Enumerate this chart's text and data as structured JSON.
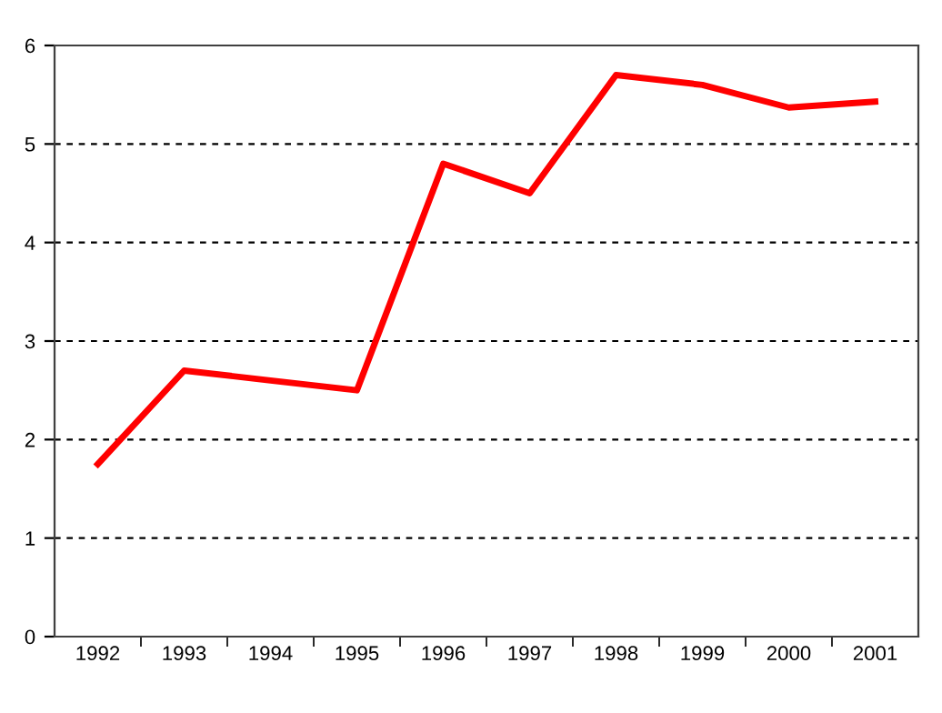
{
  "chart_data": {
    "type": "line",
    "categories": [
      "1992",
      "1993",
      "1994",
      "1995",
      "1996",
      "1997",
      "1998",
      "1999",
      "2000",
      "2001"
    ],
    "series": [
      {
        "color": "#ff0000",
        "values": [
          1.75,
          2.7,
          2.6,
          2.5,
          4.8,
          4.5,
          5.7,
          5.6,
          5.37,
          5.43
        ]
      }
    ],
    "ylim": [
      0,
      6
    ],
    "yticks": [
      0,
      1,
      2,
      3,
      4,
      5,
      6
    ],
    "grid": "y",
    "line_style": "solid",
    "marker": "none",
    "legend": false
  }
}
